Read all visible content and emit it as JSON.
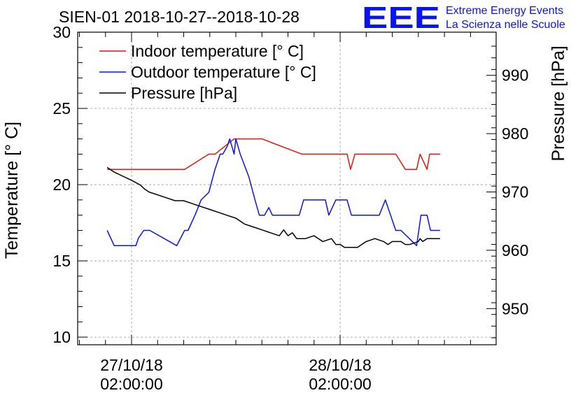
{
  "chart_data": {
    "type": "line",
    "title": "SIEN-01 2018-10-27--2018-10-28",
    "ylabel": "Temperature [° C]",
    "y2label": "Pressure [hPa]",
    "ylim": [
      9.5,
      30
    ],
    "y2lim": [
      943.8,
      997.4
    ],
    "yticks": [
      "10",
      "15",
      "20",
      "25",
      "30"
    ],
    "y2ticks": [
      "950",
      "960",
      "970",
      "980",
      "990"
    ],
    "xticks": [
      {
        "date": "27/10/18",
        "time": "02:00:00",
        "hour": 0
      },
      {
        "date": "28/10/18",
        "time": "02:00:00",
        "hour": 24
      }
    ],
    "grid": true,
    "legend_position": "top-left",
    "series": [
      {
        "name": "Indoor temperature [° C]",
        "color": "#e8140e",
        "axis": "left",
        "x": [
          -2.8,
          5.5,
          6.1,
          8.9,
          9.6,
          11.8,
          15.0,
          19.6,
          24.8,
          25.2,
          25.7,
          27.0,
          30.4,
          31.5,
          32.8,
          33.2,
          34.0,
          34.3,
          35.5
        ],
        "y": [
          21,
          21,
          21,
          22,
          22,
          23,
          23,
          22,
          22,
          21,
          22,
          22,
          22,
          21,
          21,
          22,
          21,
          22,
          22
        ]
      },
      {
        "name": "Outdoor temperature [° C]",
        "color": "#0a14ea",
        "axis": "left",
        "x": [
          -2.8,
          -2.0,
          0.5,
          0.8,
          1.4,
          2.1,
          5.2,
          6.1,
          6.5,
          7.3,
          8.0,
          8.9,
          9.6,
          10.2,
          10.5,
          11.0,
          11.3,
          11.8,
          12.0,
          12.5,
          13.5,
          14.2,
          14.7,
          15.3,
          15.8,
          16.2,
          17.5,
          17.9,
          19.3,
          19.8,
          20.1,
          22.3,
          22.7,
          23.5,
          24.0,
          24.3,
          24.8,
          25.3,
          26.0,
          27.5,
          28.5,
          29.2,
          30.4,
          31.0,
          32.8,
          33.3,
          33.5,
          34.0,
          34.4,
          35.2,
          35.5
        ],
        "y": [
          17,
          16,
          16,
          16.5,
          17,
          17,
          16,
          17,
          17,
          18,
          19,
          19.5,
          21,
          22,
          22,
          22.5,
          23,
          22,
          23,
          22,
          20.5,
          19,
          18,
          18,
          18.5,
          18,
          18,
          18,
          18,
          19,
          19,
          19,
          18,
          19,
          19,
          19,
          19,
          18,
          18,
          18,
          18,
          19,
          17,
          17,
          16,
          18,
          18,
          18,
          17,
          17,
          17
        ]
      },
      {
        "name": "Pressure [hPa]",
        "color": "#000000",
        "axis": "right",
        "x": [
          -2.8,
          -2.0,
          -1.0,
          0.0,
          1.0,
          1.5,
          2.0,
          3.0,
          4.0,
          5.0,
          6.0,
          7.0,
          8.0,
          9.0,
          10.0,
          11.0,
          12.0,
          13.0,
          14.0,
          15.0,
          16.0,
          17.0,
          17.5,
          18.0,
          18.5,
          19.0,
          20.0,
          21.0,
          22.0,
          23.0,
          23.5,
          24.0,
          24.5,
          25.0,
          25.5,
          26.0,
          27.0,
          28.0,
          29.0,
          29.5,
          30.0,
          31.0,
          31.5,
          32.0,
          33.0,
          33.2,
          33.5,
          34.0,
          35.5
        ],
        "y": [
          974.2,
          973.4,
          972.7,
          972.0,
          971.2,
          970.5,
          970.0,
          969.5,
          969.0,
          968.5,
          968.5,
          968.0,
          967.5,
          967.0,
          966.5,
          966.0,
          965.5,
          964.5,
          964.0,
          963.5,
          963.0,
          962.5,
          963.5,
          962.5,
          963.0,
          962.0,
          962.0,
          962.5,
          961.5,
          962.0,
          961.0,
          961.0,
          960.5,
          960.5,
          960.5,
          960.5,
          961.5,
          962.0,
          961.5,
          961.0,
          961.5,
          961.5,
          961.0,
          961.0,
          961.5,
          962.0,
          961.5,
          962.0,
          962.0
        ]
      }
    ]
  },
  "logo": {
    "mark": "EEE",
    "line1": "Extreme Energy Events",
    "line2": "La Scienza nelle Scuole"
  }
}
